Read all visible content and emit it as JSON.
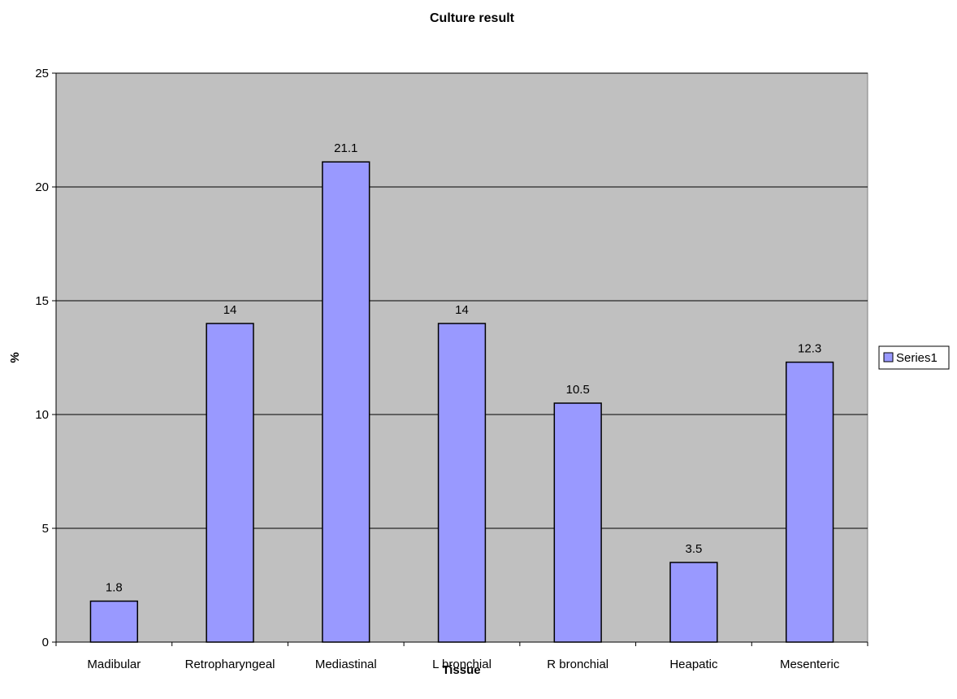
{
  "chart_data": {
    "type": "bar",
    "title": "Culture result",
    "xlabel": "Tissue",
    "ylabel": "%",
    "categories": [
      "Madibular",
      "Retropharyngeal",
      "Mediastinal",
      "L bronchial",
      "R bronchial",
      "Heapatic",
      "Mesenteric"
    ],
    "series": [
      {
        "name": "Series1",
        "values": [
          1.8,
          14,
          21.1,
          14,
          10.5,
          3.5,
          12.3
        ]
      }
    ],
    "data_labels": [
      "1.8",
      "14",
      "21.1",
      "14",
      "10.5",
      "3.5",
      "12.3"
    ],
    "ylim": [
      0,
      25
    ],
    "yticks": [
      "0",
      "5",
      "10",
      "15",
      "20",
      "25"
    ],
    "grid": true,
    "legend_position": "right",
    "colors": {
      "bar": "#9999ff",
      "plot_background": "#c0c0c0",
      "gridline": "#000000"
    }
  }
}
